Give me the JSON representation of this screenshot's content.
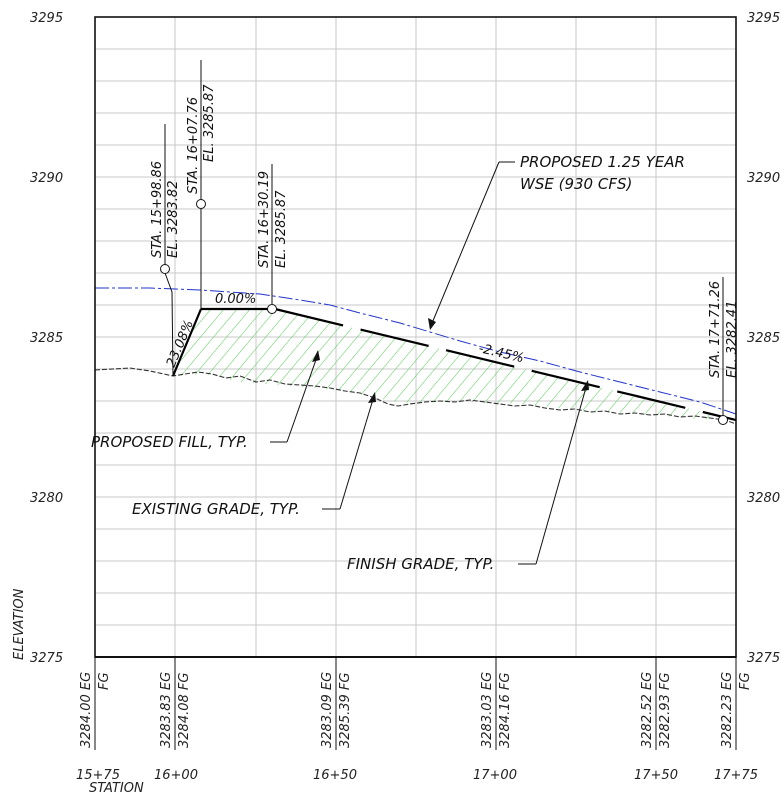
{
  "axes": {
    "y_left_ticks": [
      "3295",
      "3290",
      "3285",
      "3280",
      "3275"
    ],
    "y_right_ticks": [
      "3295",
      "3290",
      "3285",
      "3280",
      "3275"
    ],
    "x_ticks": [
      "15+75",
      "16+00",
      "16+50",
      "17+00",
      "17+50",
      "17+75"
    ],
    "y_label": "ELEVATION",
    "x_label": "STATION"
  },
  "callouts": {
    "sta1_line1": "STA. 15+98.86",
    "sta1_line2": "EL. 3283.82",
    "sta2_line1": "STA. 16+07.76",
    "sta2_line2": "EL. 3285.87",
    "sta3_line1": "STA. 16+30.19",
    "sta3_line2": "EL. 3285.87",
    "sta4_line1": "STA. 17+71.26",
    "sta4_line2": "EL. 3282.41",
    "wse_line1": "PROPOSED 1.25 YEAR",
    "wse_line2": "WSE (930 CFS)",
    "fill": "PROPOSED FILL, TYP.",
    "existing": "EXISTING GRADE, TYP.",
    "finish": "FINISH GRADE, TYP."
  },
  "slopes": {
    "s1": "23.08%",
    "s2": "0.00%",
    "s3": "-2.45%"
  },
  "elevation_table": {
    "c1_eg": "3284.00 EG",
    "c1_fg": "FG",
    "c2_eg": "3283.83 EG",
    "c2_fg": "3284.08 FG",
    "c3_eg": "3283.09 EG",
    "c3_fg": "3285.39 FG",
    "c4_eg": "3283.03 EG",
    "c4_fg": "3284.16 FG",
    "c5_eg": "3282.52 EG",
    "c5_fg": "3282.93 FG",
    "c6_eg": "3282.23 EG",
    "c6_fg": "FG"
  },
  "colors": {
    "frame": "#111111",
    "grid": "#c8c8c8",
    "wse": "#2233cc",
    "fill_hatch": "#55cc55",
    "existing": "#333333",
    "finish": "#000000"
  }
}
